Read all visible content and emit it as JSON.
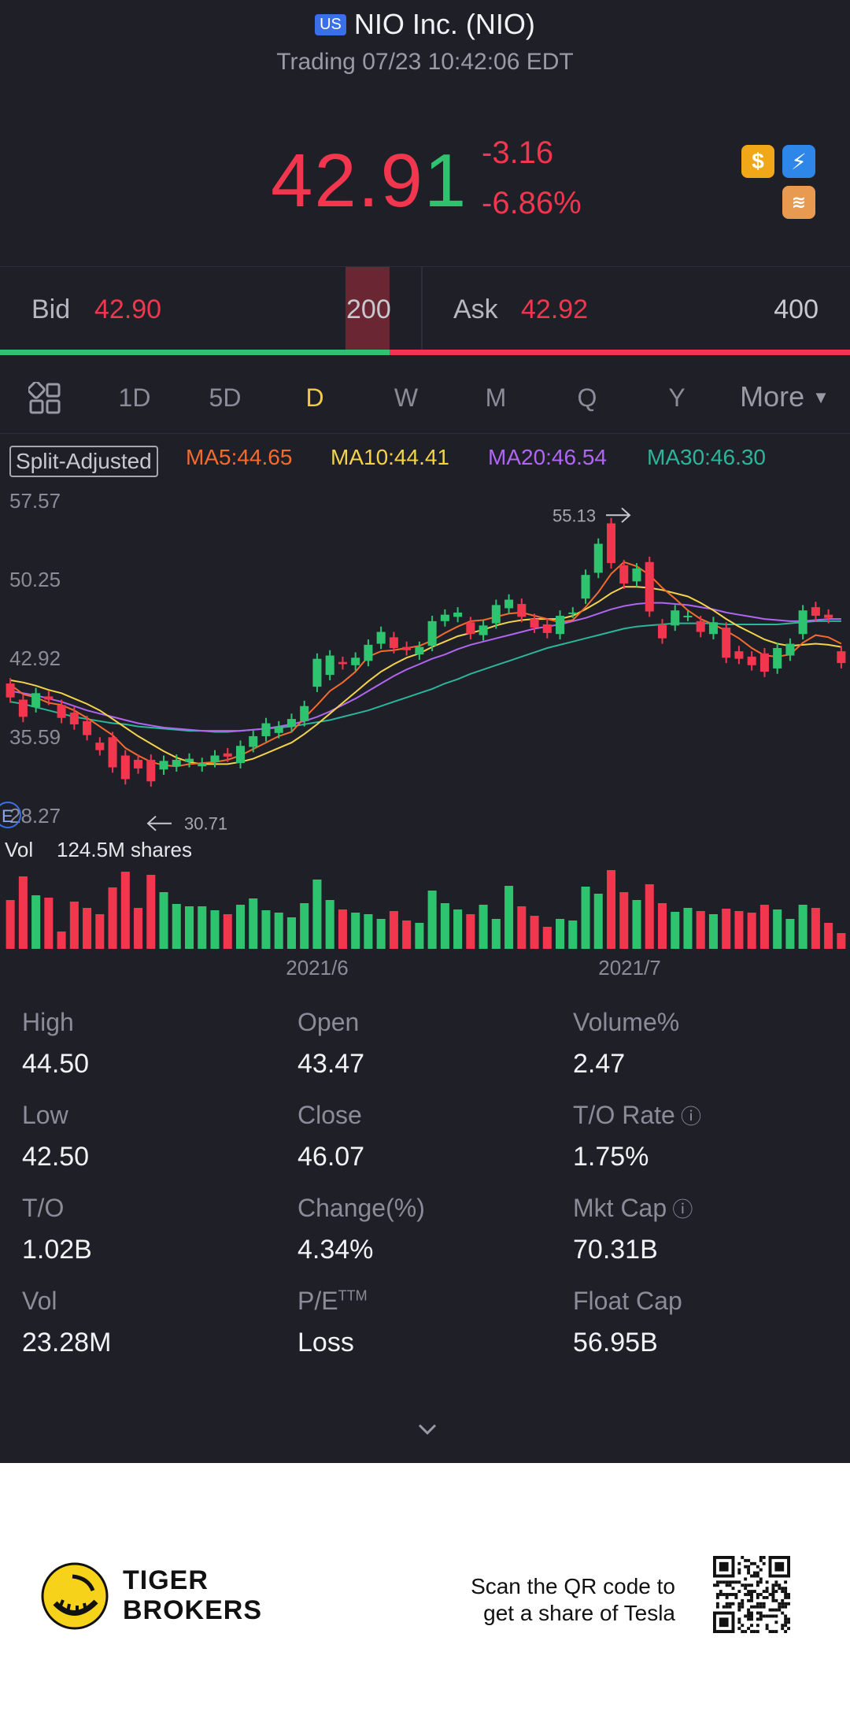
{
  "header": {
    "market_badge": "US",
    "title": "NIO Inc. (NIO)",
    "status": "Trading 07/23 10:42:06 EDT"
  },
  "quote": {
    "price_main": "42.9",
    "price_last_digit": "1",
    "change": "-3.16",
    "change_pct": "-6.86%"
  },
  "badges": [
    "dollar-icon",
    "lightning-icon",
    "layers-icon"
  ],
  "order_book": {
    "bid_label": "Bid",
    "bid_price": "42.90",
    "bid_size": "200",
    "ask_label": "Ask",
    "ask_price": "42.92",
    "ask_size": "400",
    "bid_ratio": 0.458
  },
  "tabs": [
    {
      "label": "1D",
      "active": false
    },
    {
      "label": "5D",
      "active": false
    },
    {
      "label": "D",
      "active": true
    },
    {
      "label": "W",
      "active": false
    },
    {
      "label": "M",
      "active": false
    },
    {
      "label": "Q",
      "active": false
    },
    {
      "label": "Y",
      "active": false
    },
    {
      "label": "More",
      "active": false
    }
  ],
  "indicators": {
    "split_label": "Split-Adjusted",
    "ma5": "MA5:44.65",
    "ma10": "MA10:44.41",
    "ma20": "MA20:46.54",
    "ma30": "MA30:46.30"
  },
  "chart_data": {
    "type": "candlestick",
    "y_ticks": [
      "57.57",
      "50.25",
      "42.92",
      "35.59",
      "28.27"
    ],
    "ylim": [
      28.27,
      57.57
    ],
    "high_marker": "55.13",
    "low_marker": "30.71",
    "earnings_marker": "E",
    "candles": [
      {
        "o": 40.5,
        "c": 39.2
      },
      {
        "o": 39.0,
        "c": 37.4
      },
      {
        "o": 38.3,
        "c": 39.6
      },
      {
        "o": 39.3,
        "c": 39.0
      },
      {
        "o": 38.5,
        "c": 37.3
      },
      {
        "o": 37.8,
        "c": 36.7
      },
      {
        "o": 37.0,
        "c": 35.7
      },
      {
        "o": 35.0,
        "c": 34.3
      },
      {
        "o": 35.5,
        "c": 32.7
      },
      {
        "o": 33.8,
        "c": 31.6
      },
      {
        "o": 33.4,
        "c": 32.6
      },
      {
        "o": 33.4,
        "c": 31.4
      },
      {
        "o": 32.5,
        "c": 33.3
      },
      {
        "o": 32.8,
        "c": 33.4
      },
      {
        "o": 33.2,
        "c": 33.5
      },
      {
        "o": 32.8,
        "c": 33.1
      },
      {
        "o": 33.2,
        "c": 33.8
      },
      {
        "o": 34.0,
        "c": 33.7
      },
      {
        "o": 33.1,
        "c": 34.7
      },
      {
        "o": 34.6,
        "c": 35.6
      },
      {
        "o": 35.6,
        "c": 36.8
      },
      {
        "o": 35.9,
        "c": 36.5
      },
      {
        "o": 36.5,
        "c": 37.2
      },
      {
        "o": 37.0,
        "c": 38.4
      },
      {
        "o": 40.2,
        "c": 42.8
      },
      {
        "o": 41.3,
        "c": 43.1
      },
      {
        "o": 42.5,
        "c": 42.3
      },
      {
        "o": 42.2,
        "c": 42.9
      },
      {
        "o": 42.6,
        "c": 44.1
      },
      {
        "o": 44.2,
        "c": 45.3
      },
      {
        "o": 44.8,
        "c": 43.8
      },
      {
        "o": 43.9,
        "c": 43.6
      },
      {
        "o": 43.2,
        "c": 43.9
      },
      {
        "o": 44.0,
        "c": 46.3
      },
      {
        "o": 46.3,
        "c": 46.9
      },
      {
        "o": 46.7,
        "c": 47.1
      },
      {
        "o": 46.2,
        "c": 45.1
      },
      {
        "o": 45.0,
        "c": 45.9
      },
      {
        "o": 46.1,
        "c": 47.8
      },
      {
        "o": 47.5,
        "c": 48.3
      },
      {
        "o": 47.9,
        "c": 46.7
      },
      {
        "o": 46.5,
        "c": 45.7
      },
      {
        "o": 46.0,
        "c": 45.2
      },
      {
        "o": 45.1,
        "c": 46.8
      },
      {
        "o": 47.1,
        "c": 47.1
      },
      {
        "o": 48.4,
        "c": 50.6
      },
      {
        "o": 50.8,
        "c": 53.5
      },
      {
        "o": 55.4,
        "c": 51.7
      },
      {
        "o": 51.5,
        "c": 49.8
      },
      {
        "o": 50.0,
        "c": 51.2
      },
      {
        "o": 51.8,
        "c": 47.2
      },
      {
        "o": 46.0,
        "c": 44.7
      },
      {
        "o": 45.9,
        "c": 47.3
      },
      {
        "o": 46.8,
        "c": 46.8
      },
      {
        "o": 46.3,
        "c": 45.3
      },
      {
        "o": 45.1,
        "c": 46.2
      },
      {
        "o": 45.7,
        "c": 42.9
      },
      {
        "o": 43.5,
        "c": 42.8
      },
      {
        "o": 43.0,
        "c": 42.2
      },
      {
        "o": 43.3,
        "c": 41.6
      },
      {
        "o": 41.9,
        "c": 43.8
      },
      {
        "o": 43.1,
        "c": 44.2
      },
      {
        "o": 45.1,
        "c": 47.3
      },
      {
        "o": 47.6,
        "c": 46.8
      },
      {
        "o": 46.9,
        "c": 46.6
      },
      {
        "o": 43.5,
        "c": 42.4
      }
    ],
    "ma5": [
      40.4,
      39.5,
      39.2,
      38.7,
      38.5,
      38.0,
      37.3,
      36.5,
      35.7,
      34.5,
      33.8,
      33.2,
      32.9,
      32.8,
      33.0,
      33.1,
      33.2,
      33.4,
      33.8,
      34.4,
      35.0,
      35.6,
      36.0,
      37.3,
      38.5,
      39.8,
      40.6,
      41.6,
      43.0,
      43.5,
      43.6,
      43.8,
      44.0,
      44.5,
      45.2,
      45.8,
      46.3,
      46.4,
      46.7,
      47.0,
      47.1,
      46.8,
      46.5,
      46.2,
      46.4,
      47.6,
      49.0,
      50.7,
      51.8,
      51.4,
      50.6,
      49.4,
      48.4,
      47.3,
      46.5,
      46.0,
      45.4,
      44.7,
      43.8,
      43.1,
      43.0,
      43.2,
      44.3,
      45.0,
      44.8,
      44.2
    ],
    "ma10": [
      40.8,
      40.6,
      40.3,
      39.9,
      39.6,
      39.1,
      38.6,
      38.0,
      37.2,
      36.4,
      35.6,
      34.9,
      34.2,
      33.6,
      33.2,
      33.0,
      33.0,
      33.0,
      33.2,
      33.5,
      34.0,
      34.5,
      35.0,
      35.8,
      36.7,
      37.7,
      38.7,
      39.7,
      40.7,
      41.6,
      42.3,
      42.9,
      43.3,
      43.9,
      44.4,
      44.9,
      45.2,
      45.5,
      45.9,
      46.2,
      46.4,
      46.5,
      46.5,
      46.5,
      46.8,
      47.4,
      48.1,
      48.9,
      49.5,
      49.5,
      49.4,
      49.2,
      48.9,
      48.6,
      48.0,
      47.3,
      46.5,
      45.8,
      45.2,
      44.6,
      44.2,
      44.0,
      44.1,
      44.2,
      44.1,
      43.9
    ],
    "ma20": [
      39.8,
      39.6,
      39.4,
      39.1,
      38.8,
      38.4,
      38.0,
      37.7,
      37.4,
      37.1,
      36.8,
      36.6,
      36.4,
      36.3,
      36.2,
      36.1,
      36.1,
      36.1,
      36.1,
      36.2,
      36.3,
      36.5,
      36.7,
      37.0,
      37.4,
      37.9,
      38.5,
      39.1,
      39.8,
      40.5,
      41.2,
      41.8,
      42.3,
      42.8,
      43.2,
      43.7,
      44.1,
      44.4,
      44.7,
      45.0,
      45.3,
      45.6,
      45.8,
      46.0,
      46.3,
      46.6,
      47.0,
      47.4,
      47.7,
      47.9,
      48.0,
      48.0,
      47.9,
      47.8,
      47.6,
      47.4,
      47.1,
      46.9,
      46.7,
      46.5,
      46.4,
      46.3,
      46.3,
      46.4,
      46.5,
      46.5
    ],
    "ma30": [
      38.8,
      38.6,
      38.3,
      38.0,
      37.7,
      37.4,
      37.2,
      37.0,
      36.8,
      36.7,
      36.5,
      36.4,
      36.3,
      36.2,
      36.1,
      36.1,
      36.0,
      36.0,
      36.1,
      36.2,
      36.3,
      36.4,
      36.5,
      36.7,
      36.9,
      37.1,
      37.4,
      37.7,
      38.0,
      38.4,
      38.8,
      39.2,
      39.6,
      40.0,
      40.5,
      40.9,
      41.4,
      41.8,
      42.2,
      42.6,
      43.0,
      43.4,
      43.8,
      44.1,
      44.4,
      44.7,
      45.0,
      45.3,
      45.6,
      45.8,
      45.9,
      46.0,
      46.1,
      46.1,
      46.1,
      46.1,
      46.0,
      46.0,
      46.0,
      46.0,
      46.0,
      46.1,
      46.2,
      46.3,
      46.3,
      46.3
    ],
    "volume_label": "Vol",
    "volume_value": "124.5M shares",
    "volumes": [
      0.62,
      0.92,
      0.68,
      0.65,
      0.22,
      0.6,
      0.52,
      0.44,
      0.78,
      0.98,
      0.52,
      0.94,
      0.72,
      0.57,
      0.54,
      0.54,
      0.49,
      0.44,
      0.56,
      0.64,
      0.49,
      0.46,
      0.4,
      0.58,
      0.88,
      0.62,
      0.5,
      0.46,
      0.44,
      0.38,
      0.48,
      0.36,
      0.33,
      0.74,
      0.58,
      0.5,
      0.44,
      0.56,
      0.38,
      0.8,
      0.54,
      0.42,
      0.28,
      0.38,
      0.36,
      0.79,
      0.7,
      1.0,
      0.72,
      0.62,
      0.82,
      0.58,
      0.47,
      0.52,
      0.48,
      0.44,
      0.51,
      0.48,
      0.46,
      0.56,
      0.5,
      0.38,
      0.56,
      0.52,
      0.33,
      0.2
    ],
    "x_labels": [
      "2021/6",
      "2021/7"
    ]
  },
  "stats": [
    {
      "label": "High",
      "value": "44.50"
    },
    {
      "label": "Open",
      "value": "43.47"
    },
    {
      "label": "Volume%",
      "value": "2.47"
    },
    {
      "label": "Low",
      "value": "42.50"
    },
    {
      "label": "Close",
      "value": "46.07"
    },
    {
      "label": "T/O Rate",
      "value": "1.75%"
    },
    {
      "label": "T/O",
      "value": "1.02B"
    },
    {
      "label": "Change(%)",
      "value": "4.34%"
    },
    {
      "label": "Mkt Cap",
      "value": "70.31B"
    },
    {
      "label": "Vol",
      "value": "23.28M"
    },
    {
      "label": "P/E",
      "value": "Loss"
    },
    {
      "label": "Float Cap",
      "value": "56.95B"
    }
  ],
  "pe_superscript": "TTM",
  "footer": {
    "brand_line1": "TIGER",
    "brand_line2": "BROKERS",
    "promo_line1": "Scan the QR code to",
    "promo_line2": "get a share of Tesla"
  },
  "colors": {
    "background": "#1f1f28",
    "up": "#2ec36e",
    "down": "#f2364e",
    "active_tab": "#f3c94a",
    "ma5": "#f46b2e",
    "ma10": "#f3d34a",
    "ma20": "#b066f0",
    "ma30": "#2bb59a"
  }
}
